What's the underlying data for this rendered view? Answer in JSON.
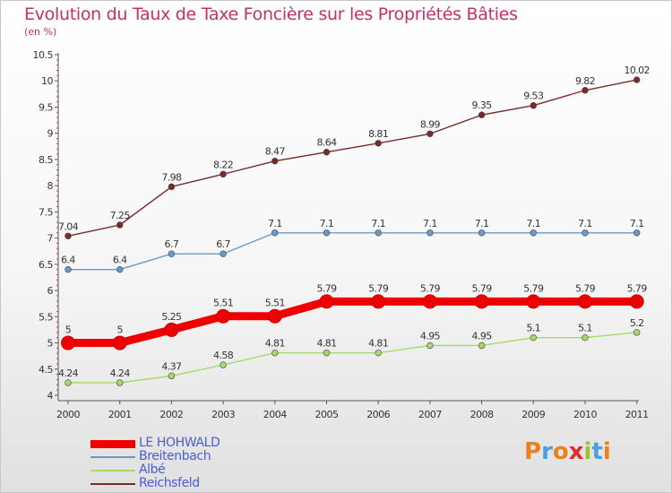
{
  "chart_data": {
    "type": "line",
    "title": "Evolution du Taux de Taxe Foncière sur les Propriétés Bâties",
    "subtitle": "(en %)",
    "xlabel": "",
    "ylabel": "",
    "x": [
      "2000",
      "2001",
      "2002",
      "2003",
      "2004",
      "2005",
      "2006",
      "2007",
      "2008",
      "2009",
      "2010",
      "2011"
    ],
    "ylim": [
      4,
      10.5
    ],
    "yticks": [
      "4",
      "4.5",
      "5",
      "5.5",
      "6",
      "6.5",
      "7",
      "7.5",
      "8",
      "8.5",
      "9",
      "9.5",
      "10",
      "10.5"
    ],
    "grid": false,
    "legend_position": "bottom-left",
    "series": [
      {
        "name": "LE HOHWALD",
        "color": "#ee0000",
        "emphasis": true,
        "values": [
          5,
          5,
          5.25,
          5.51,
          5.51,
          5.79,
          5.79,
          5.79,
          5.79,
          5.79,
          5.79,
          5.79
        ],
        "labels": [
          "5",
          "5",
          "5.25",
          "5.51",
          "5.51",
          "5.79",
          "5.79",
          "5.79",
          "5.79",
          "5.79",
          "5.79",
          "5.79"
        ]
      },
      {
        "name": "Breitenbach",
        "color": "#6a9bc8",
        "emphasis": false,
        "values": [
          6.4,
          6.4,
          6.7,
          6.7,
          7.1,
          7.1,
          7.1,
          7.1,
          7.1,
          7.1,
          7.1,
          7.1
        ],
        "labels": [
          "6.4",
          "6.4",
          "6.7",
          "6.7",
          "7.1",
          "7.1",
          "7.1",
          "7.1",
          "7.1",
          "7.1",
          "7.1",
          "7.1"
        ]
      },
      {
        "name": "Albé",
        "color": "#a6d86a",
        "emphasis": false,
        "values": [
          4.24,
          4.24,
          4.37,
          4.58,
          4.81,
          4.81,
          4.81,
          4.95,
          4.95,
          5.1,
          5.1,
          5.2
        ],
        "labels": [
          "4.24",
          "4.24",
          "4.37",
          "4.58",
          "4.81",
          "4.81",
          "4.81",
          "4.95",
          "4.95",
          "5.1",
          "5.1",
          "5.2"
        ]
      },
      {
        "name": "Reichsfeld",
        "color": "#7a2a2a",
        "emphasis": false,
        "values": [
          7.04,
          7.25,
          7.98,
          8.22,
          8.47,
          8.64,
          8.81,
          8.99,
          9.35,
          9.53,
          9.82,
          10.02
        ],
        "labels": [
          "7.04",
          "7.25",
          "7.98",
          "8.22",
          "8.47",
          "8.64",
          "8.81",
          "8.99",
          "9.35",
          "9.53",
          "9.82",
          "10.02"
        ]
      }
    ]
  },
  "brand": {
    "text": "Proxiti",
    "colors": [
      "#e8821e",
      "#4aa0e0",
      "#e8821e",
      "#d83030",
      "#a0c030",
      "#4aa0e0",
      "#e8821e"
    ]
  },
  "colors": {
    "title": "#c0306a",
    "axis": "#555555",
    "legend_text": "#4b5cd6"
  }
}
